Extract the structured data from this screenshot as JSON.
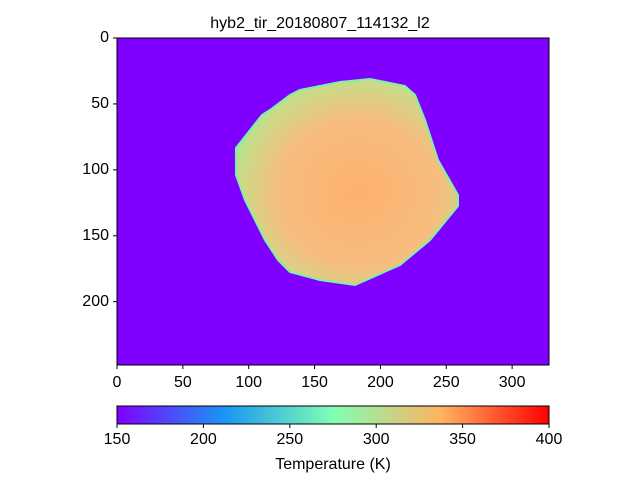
{
  "chart_data": {
    "type": "image",
    "title": "hyb2_tir_20180807_114132_l2",
    "xlim": [
      0,
      328
    ],
    "xticks": [
      0,
      50,
      100,
      150,
      200,
      250,
      300
    ],
    "ylim": [
      0,
      248
    ],
    "yticks": [
      0,
      50,
      100,
      150,
      200
    ],
    "y_inverted": true,
    "background_color": "#8000ff",
    "colorbar": {
      "label": "Temperature (K)",
      "clim": [
        150,
        400
      ],
      "ticks": [
        150,
        200,
        250,
        300,
        350,
        400
      ],
      "colormap": [
        "#8000ff",
        "#1996f3",
        "#80ffb4",
        "#ffb360",
        "#ff0000"
      ]
    }
  }
}
